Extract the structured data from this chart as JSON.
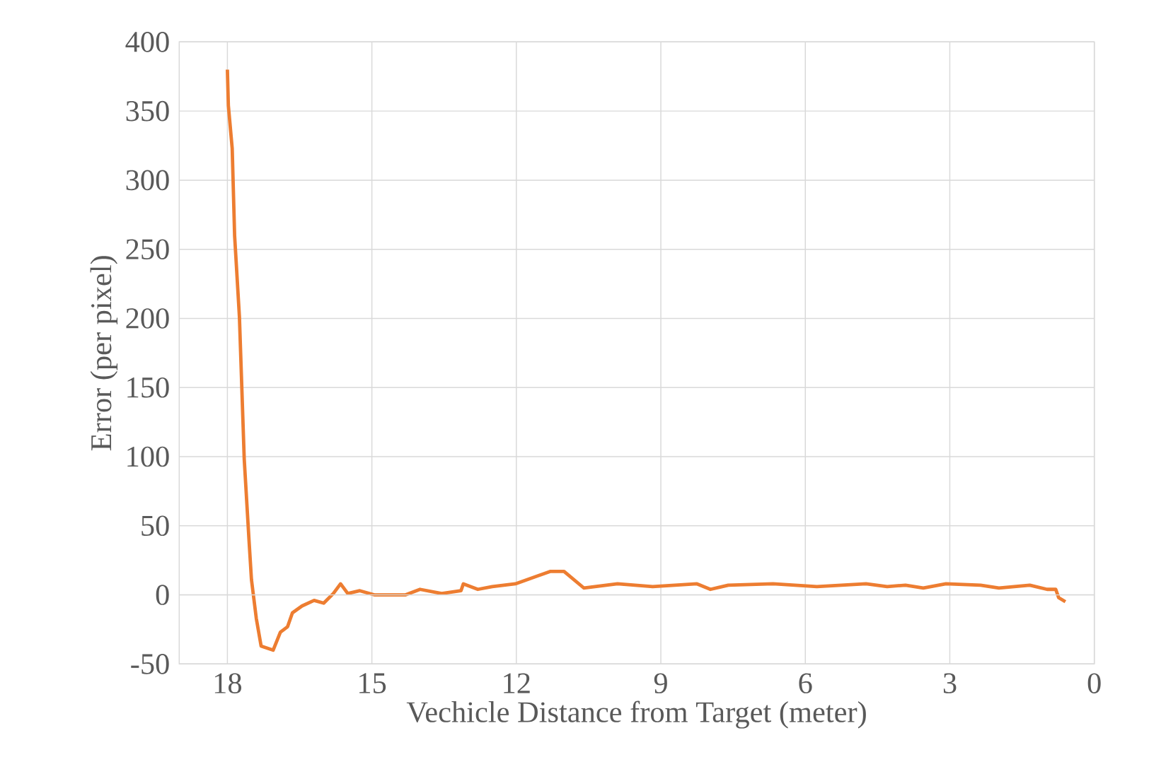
{
  "chart_data": {
    "type": "line",
    "xlabel": "Vechicle Distance from Target (meter)",
    "ylabel": "Error (per pixel)",
    "xlim": [
      19,
      0
    ],
    "ylim": [
      -50,
      400
    ],
    "xticks": [
      18,
      15,
      12,
      9,
      6,
      3,
      0
    ],
    "yticks": [
      -50,
      0,
      50,
      100,
      150,
      200,
      250,
      300,
      350,
      400
    ],
    "grid": true,
    "series": [
      {
        "color": "#ed7d31",
        "x": [
          18.0,
          17.98,
          17.9,
          17.85,
          17.75,
          17.65,
          17.55,
          17.5,
          17.4,
          17.3,
          17.05,
          16.9,
          16.75,
          16.65,
          16.45,
          16.2,
          16.0,
          15.8,
          15.65,
          15.5,
          15.25,
          14.95,
          14.3,
          14.0,
          13.55,
          13.15,
          13.1,
          12.8,
          12.5,
          12.02,
          11.29,
          11.01,
          10.6,
          9.9,
          9.17,
          8.25,
          7.97,
          7.6,
          6.67,
          5.76,
          4.74,
          4.3,
          3.92,
          3.55,
          3.08,
          2.36,
          1.98,
          1.34,
          0.98,
          0.8,
          0.74,
          0.6
        ],
        "values": [
          380,
          354,
          323,
          260,
          201,
          98,
          39,
          11,
          -17,
          -37,
          -40,
          -27,
          -23,
          -13,
          -8,
          -4,
          -6,
          1,
          8,
          1,
          3,
          0,
          0,
          4,
          1,
          3,
          8,
          4,
          6,
          8,
          17,
          17,
          5,
          8,
          6,
          8,
          4,
          7,
          8,
          6,
          8,
          6,
          7,
          5,
          8,
          7,
          5,
          7,
          4,
          4,
          -2,
          -5
        ]
      }
    ]
  }
}
